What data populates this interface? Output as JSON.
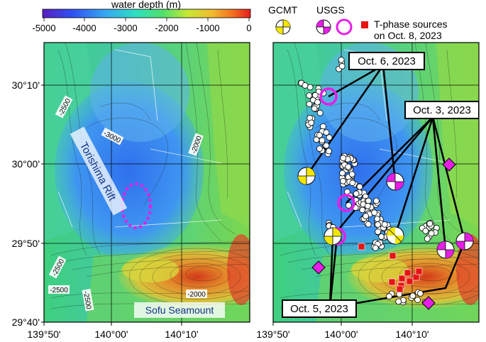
{
  "colorbar": {
    "title": "water depth (m)",
    "ticks": [
      "-5000",
      "-4000",
      "-3000",
      "-2000",
      "-1000",
      "0"
    ],
    "stops": [
      "#5a1fc0",
      "#2f4ff2",
      "#35a6f2",
      "#2ee0c2",
      "#4fe06a",
      "#c8e832",
      "#f2b82e",
      "#f26b1e",
      "#ea1d1d"
    ]
  },
  "legend": {
    "gcmt_label": "GCMT",
    "usgs_label": "USGS",
    "tphase_label_line1": "T-phase sources",
    "tphase_label_line2": "on Oct. 8, 2023"
  },
  "left_panel": {
    "rift_label": "Torishima Rift",
    "seamount_label": "Sofu Seamount",
    "contour_labels": [
      "-2500",
      "-3000",
      "-2000",
      "-2500",
      "-2500",
      "-2500",
      "-2000"
    ]
  },
  "right_panel": {
    "event_labels": [
      "Oct. 6, 2023",
      "Oct. 3, 2023",
      "Oct. 5, 2023"
    ]
  },
  "axes": {
    "lat_ticks": [
      "30°10'",
      "30°00'",
      "29°50'",
      "29°40'"
    ],
    "lon_ticks_left": [
      "139°50'",
      "140°00'",
      "140°10'"
    ],
    "lon_ticks_right": [
      "139°50'",
      "140°00'",
      "140°10'"
    ]
  },
  "colors": {
    "usgs": "#e61ee6",
    "gcmt": "#f2e600",
    "tphase": "#e61414"
  }
}
